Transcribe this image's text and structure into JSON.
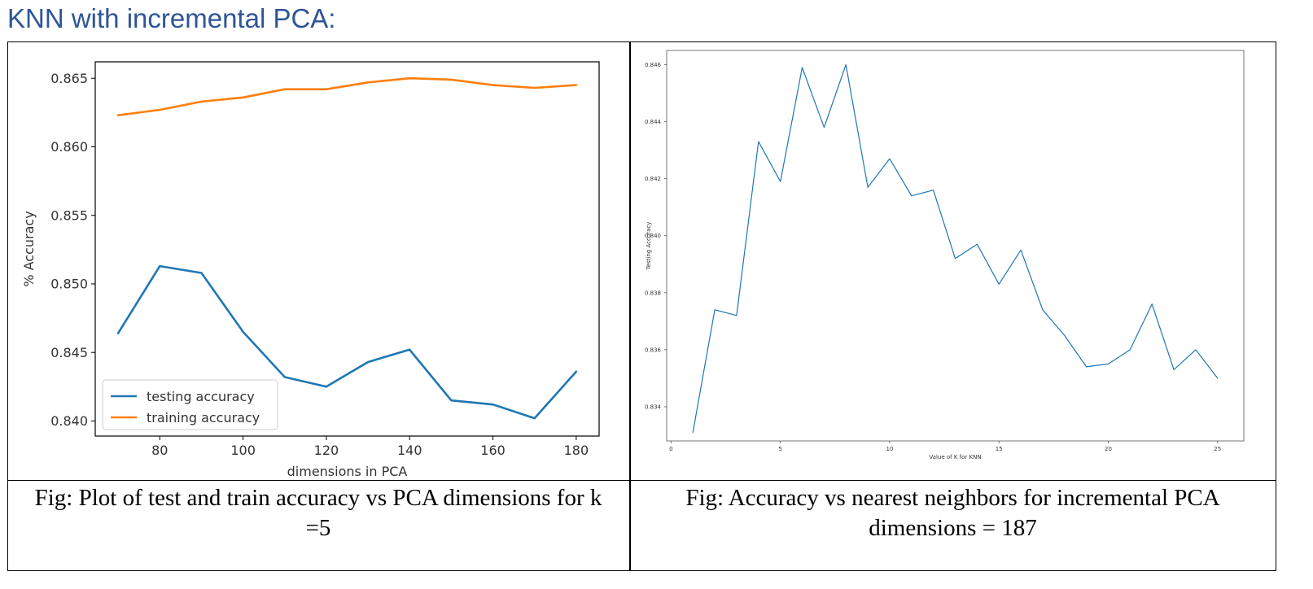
{
  "heading": "KNN with incremental PCA:",
  "captions": {
    "left": "Fig: Plot of test and train accuracy vs PCA dimensions for k =5",
    "right": "Fig: Accuracy vs nearest neighbors for incremental PCA dimensions = 187"
  },
  "chart_data": [
    {
      "type": "line",
      "title": "",
      "xlabel": "dimensions in PCA",
      "ylabel": "% Accuracy",
      "x": [
        70,
        80,
        90,
        100,
        110,
        120,
        130,
        140,
        150,
        160,
        170,
        180
      ],
      "xlim": [
        64.5,
        185.5
      ],
      "ylim": [
        0.8389,
        0.8662
      ],
      "xticks": [
        80,
        100,
        120,
        140,
        160,
        180
      ],
      "yticks": [
        0.84,
        0.845,
        0.85,
        0.855,
        0.86,
        0.865
      ],
      "ytick_labels": [
        "0.840",
        "0.845",
        "0.850",
        "0.855",
        "0.860",
        "0.865"
      ],
      "grid": false,
      "legend_position": "lower-left",
      "series": [
        {
          "name": "testing accuracy",
          "color": "#1f77b4",
          "values": [
            0.8464,
            0.8513,
            0.8508,
            0.8465,
            0.8432,
            0.8425,
            0.8443,
            0.8452,
            0.8415,
            0.8412,
            0.8402,
            0.8436
          ]
        },
        {
          "name": "training accuracy",
          "color": "#ff7f0e",
          "values": [
            0.8623,
            0.8627,
            0.8633,
            0.8636,
            0.8642,
            0.8642,
            0.8647,
            0.865,
            0.8649,
            0.8645,
            0.8643,
            0.8645
          ]
        }
      ]
    },
    {
      "type": "line",
      "title": "",
      "xlabel": "Value of K for KNN",
      "ylabel": "Testing Accuracy",
      "x": [
        1,
        2,
        3,
        4,
        5,
        6,
        7,
        8,
        9,
        10,
        11,
        12,
        13,
        14,
        15,
        16,
        17,
        18,
        19,
        20,
        21,
        22,
        23,
        24,
        25
      ],
      "xlim": [
        -0.2,
        26.2
      ],
      "ylim": [
        0.8328,
        0.8465
      ],
      "xticks": [
        0,
        5,
        10,
        15,
        20,
        25
      ],
      "yticks": [
        0.834,
        0.836,
        0.838,
        0.84,
        0.842,
        0.844,
        0.846
      ],
      "ytick_labels": [
        "0.834",
        "0.836",
        "0.838",
        "0.840",
        "0.842",
        "0.844",
        "0.846"
      ],
      "grid": false,
      "series": [
        {
          "color": "#1f77b4",
          "values": [
            0.8331,
            0.8374,
            0.8372,
            0.8433,
            0.8419,
            0.8459,
            0.8438,
            0.846,
            0.8417,
            0.8427,
            0.8414,
            0.8416,
            0.8392,
            0.8397,
            0.8383,
            0.8395,
            0.8374,
            0.8365,
            0.8354,
            0.8355,
            0.836,
            0.8376,
            0.8353,
            0.836,
            0.835
          ]
        }
      ]
    }
  ]
}
